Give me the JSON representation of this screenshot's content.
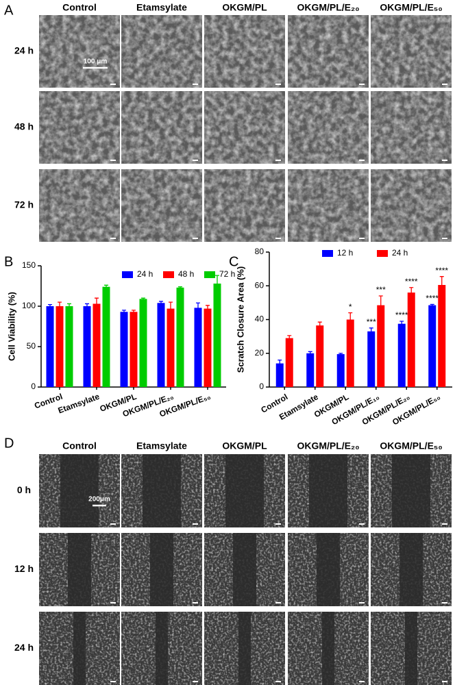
{
  "panel_a": {
    "label": "A",
    "columns": [
      "Control",
      "Etamsylate",
      "OKGM/PL",
      "OKGM/PL/E₂₀",
      "OKGM/PL/E₅₀"
    ],
    "rows": [
      "24 h",
      "48 h",
      "72 h"
    ],
    "scale_bar": "100 μm"
  },
  "chart_data": [
    {
      "type": "bar",
      "panel_label": "B",
      "ylabel": "Cell Viability (%)",
      "categories": [
        "Control",
        "Etamsylate",
        "OKGM/PL",
        "OKGM/PL/E₂₀",
        "OKGM/PL/E₅₀"
      ],
      "series": [
        {
          "name": "24 h",
          "color": "#0000ff",
          "values": [
            100,
            100,
            93,
            104,
            98
          ],
          "errors": [
            2,
            3,
            2,
            2,
            6
          ]
        },
        {
          "name": "48 h",
          "color": "#ff0000",
          "values": [
            100,
            103,
            93,
            97,
            97
          ],
          "errors": [
            5,
            7,
            2,
            8,
            4
          ]
        },
        {
          "name": "72 h",
          "color": "#00cc00",
          "values": [
            100,
            124,
            109,
            123,
            128
          ],
          "errors": [
            3,
            2,
            1,
            1,
            10
          ]
        }
      ],
      "ylim": [
        0,
        150
      ],
      "yticks": [
        0,
        50,
        100,
        150
      ]
    },
    {
      "type": "bar",
      "panel_label": "C",
      "ylabel": "Scratch Closure Area (%)",
      "categories": [
        "Control",
        "Etamsylate",
        "OKGM/PL",
        "OKGM/PL/E₁₀",
        "OKGM/PL/E₂₀",
        "OKGM/PL/E₅₀"
      ],
      "series": [
        {
          "name": "12 h",
          "color": "#0000ff",
          "values": [
            14,
            20,
            19.5,
            33,
            37.5,
            48.5
          ],
          "errors": [
            2,
            1,
            0.5,
            2,
            1.5,
            0.5
          ],
          "annotations": [
            null,
            null,
            null,
            "***",
            "****",
            "****"
          ]
        },
        {
          "name": "24 h",
          "color": "#ff0000",
          "values": [
            29,
            36.5,
            40,
            48.5,
            56,
            60.5
          ],
          "errors": [
            1.5,
            2,
            4,
            5.5,
            3,
            5
          ],
          "annotations": [
            null,
            null,
            "*",
            "***",
            "****",
            "****"
          ]
        }
      ],
      "ylim": [
        0,
        80
      ],
      "yticks": [
        0,
        20,
        40,
        60,
        80
      ]
    }
  ],
  "panel_d": {
    "label": "D",
    "columns": [
      "Control",
      "Etamsylate",
      "OKGM/PL",
      "OKGM/PL/E₂₀",
      "OKGM/PL/E₅₀"
    ],
    "rows": [
      "0 h",
      "12 h",
      "24 h"
    ],
    "scale_bar": "200μm"
  }
}
